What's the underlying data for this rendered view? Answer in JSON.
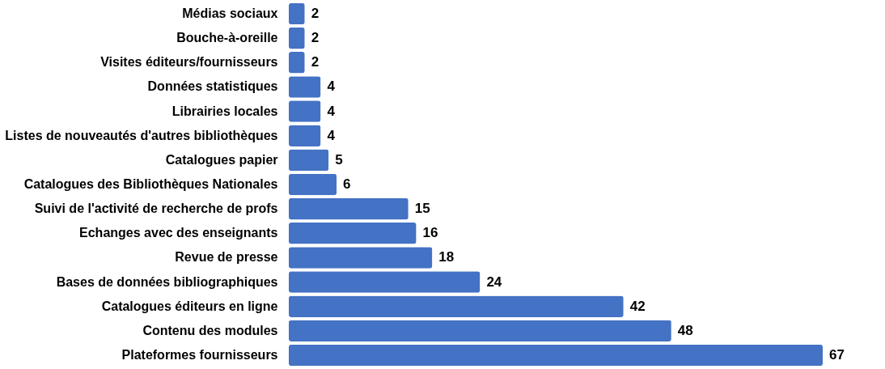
{
  "chart_data": {
    "type": "bar",
    "orientation": "horizontal",
    "categories": [
      "Médias  sociaux",
      "Bouche-à-oreille",
      "Visites éditeurs/fournisseurs",
      "Données statistiques",
      "Librairies locales",
      "Listes de nouveautés d'autres bibliothèques",
      "Catalogues papier",
      "Catalogues des Bibliothèques Nationales",
      "Suivi de l'activité de recherche de profs",
      "Echanges avec des enseignants",
      "Revue de presse ",
      "Bases de données bibliographiques",
      "Catalogues éditeurs en ligne",
      "Contenu des modules",
      "Plateformes fournisseurs"
    ],
    "values": [
      2,
      2,
      2,
      4,
      4,
      4,
      5,
      6,
      15,
      16,
      18,
      24,
      42,
      48,
      67
    ],
    "color": "#4472c4",
    "data_labels": true,
    "tick_labels": "y"
  }
}
